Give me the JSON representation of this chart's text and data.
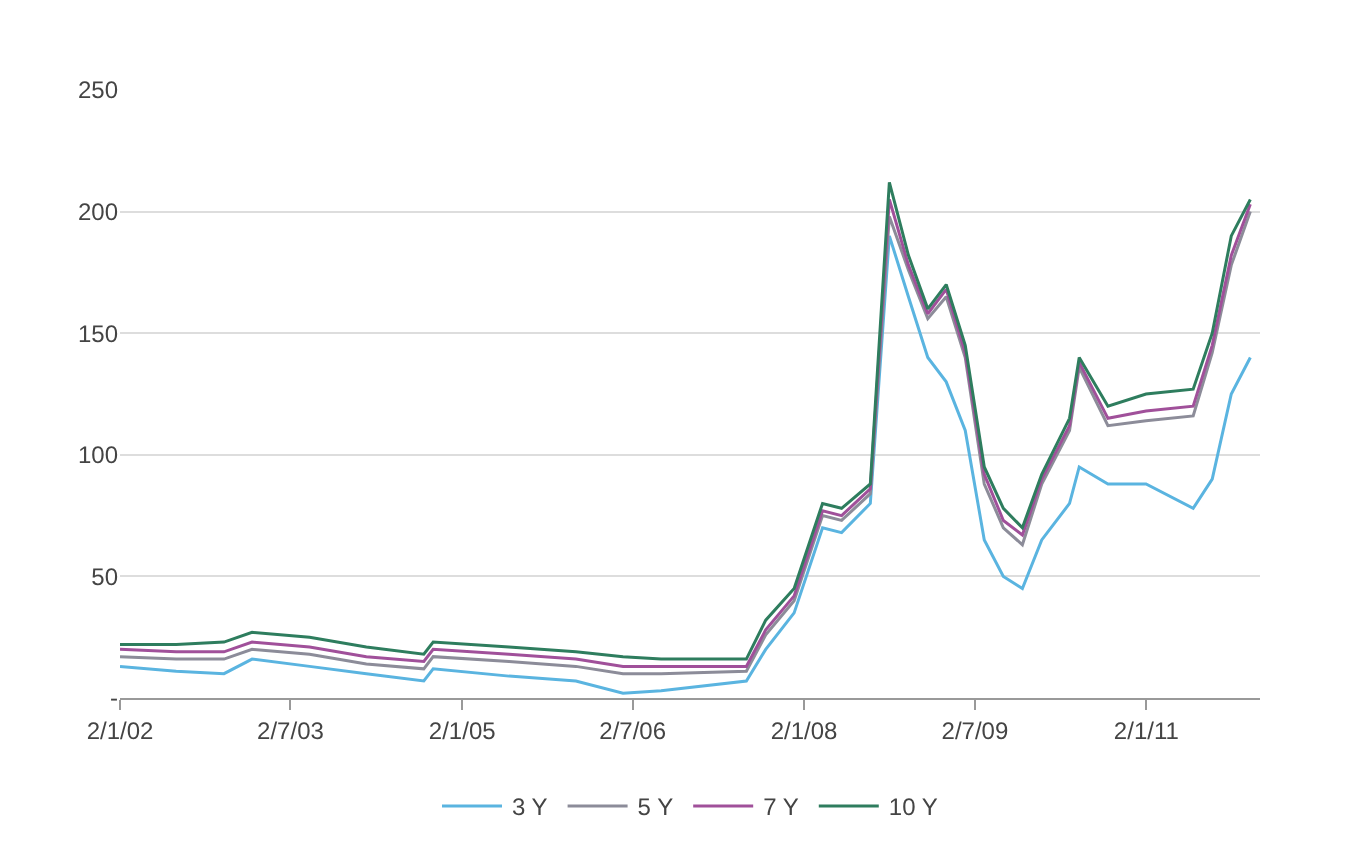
{
  "chart_data": {
    "type": "line",
    "x": [
      "2002-01-02",
      "2002-07",
      "2002-12",
      "2003-03",
      "2003-09",
      "2004-03",
      "2004-09",
      "2004-10",
      "2005-06",
      "2006-01",
      "2006-06",
      "2006-10",
      "2007-07",
      "2007-09",
      "2007-12",
      "2008-03",
      "2008-05",
      "2008-08",
      "2008-10",
      "2008-12",
      "2009-02",
      "2009-04",
      "2009-06",
      "2009-08",
      "2009-10",
      "2009-12",
      "2010-02",
      "2010-05",
      "2010-06",
      "2010-09",
      "2011-01",
      "2011-06",
      "2011-08",
      "2011-10",
      "2011-12"
    ],
    "series": [
      {
        "name": "3 Y",
        "color": "#5ab4e0",
        "values": [
          13,
          11,
          10,
          16,
          13,
          10,
          7,
          12,
          9,
          7,
          2,
          3,
          7,
          20,
          35,
          70,
          68,
          80,
          190,
          165,
          140,
          130,
          110,
          65,
          50,
          45,
          65,
          80,
          95,
          88,
          88,
          78,
          90,
          125,
          140
        ]
      },
      {
        "name": "5 Y",
        "color": "#8c8c99",
        "values": [
          17,
          16,
          16,
          20,
          18,
          14,
          12,
          17,
          15,
          13,
          10,
          10,
          11,
          26,
          40,
          75,
          73,
          84,
          198,
          176,
          156,
          165,
          140,
          88,
          70,
          63,
          88,
          110,
          136,
          112,
          114,
          116,
          142,
          178,
          200
        ]
      },
      {
        "name": "7 Y",
        "color": "#a0509a",
        "values": [
          20,
          19,
          19,
          23,
          21,
          17,
          15,
          20,
          18,
          16,
          13,
          13,
          13,
          28,
          42,
          77,
          75,
          86,
          205,
          178,
          158,
          168,
          142,
          92,
          73,
          67,
          90,
          112,
          138,
          115,
          118,
          120,
          145,
          182,
          203
        ]
      },
      {
        "name": "10 Y",
        "color": "#2e7d5e",
        "values": [
          22,
          22,
          23,
          27,
          25,
          21,
          18,
          23,
          21,
          19,
          17,
          16,
          16,
          32,
          45,
          80,
          78,
          88,
          212,
          182,
          160,
          170,
          145,
          95,
          78,
          70,
          92,
          115,
          140,
          120,
          125,
          127,
          150,
          190,
          205
        ]
      }
    ],
    "xlim": [
      "2002-01-02",
      "2012-01-01"
    ],
    "xticks": [
      {
        "value": "2002-01-02",
        "label": "2/1/02"
      },
      {
        "value": "2003-07-02",
        "label": "2/7/03"
      },
      {
        "value": "2005-01-02",
        "label": "2/1/05"
      },
      {
        "value": "2006-07-02",
        "label": "2/7/06"
      },
      {
        "value": "2008-01-02",
        "label": "2/1/08"
      },
      {
        "value": "2009-07-02",
        "label": "2/7/09"
      },
      {
        "value": "2011-01-02",
        "label": "2/1/11"
      }
    ],
    "ylim": [
      0,
      250
    ],
    "yticks": [
      {
        "value": 0,
        "label": "-"
      },
      50,
      100,
      150,
      200,
      250
    ],
    "grid": "y",
    "legend": "bottom",
    "marker": "none",
    "line_style": "solid"
  }
}
